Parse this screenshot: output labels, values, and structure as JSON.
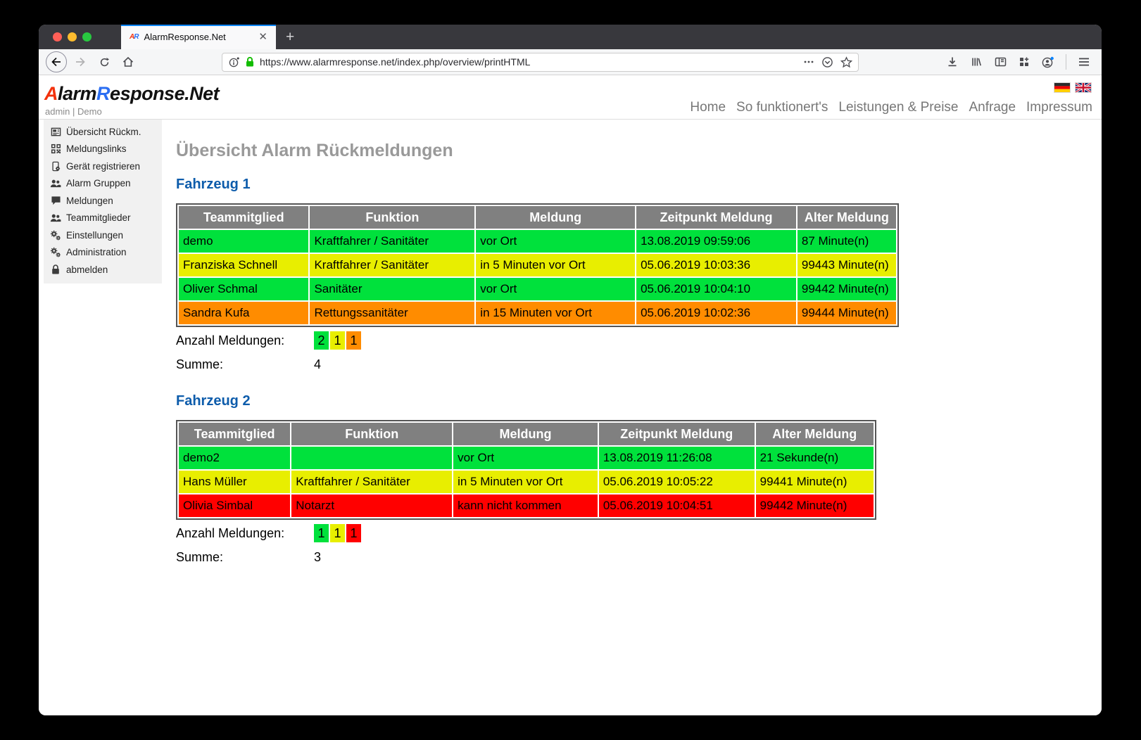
{
  "browser": {
    "tab_title": "AlarmResponse.Net",
    "favicon": {
      "a": "A",
      "r": "R"
    },
    "url": "https://www.alarmresponse.net/index.php/overview/printHTML"
  },
  "header": {
    "logo": {
      "part1": "A",
      "part2": "larm",
      "part3": "R",
      "part4": "esponse.Net"
    },
    "user_info": "admin | Demo",
    "nav": [
      "Home",
      "So funktionert's",
      "Leistungen & Preise",
      "Anfrage",
      "Impressum"
    ],
    "languages": [
      "german-flag",
      "uk-flag"
    ]
  },
  "sidebar": {
    "items": [
      {
        "icon": "overview-icon",
        "label": "Übersicht Rückm."
      },
      {
        "icon": "qr-code-icon",
        "label": "Meldungslinks"
      },
      {
        "icon": "device-register-icon",
        "label": "Gerät registrieren"
      },
      {
        "icon": "users-icon",
        "label": "Alarm Gruppen"
      },
      {
        "icon": "chat-icon",
        "label": "Meldungen"
      },
      {
        "icon": "users-icon",
        "label": "Teammitglieder"
      },
      {
        "icon": "gears-icon",
        "label": "Einstellungen"
      },
      {
        "icon": "gears-icon",
        "label": "Administration"
      },
      {
        "icon": "lock-icon",
        "label": "abmelden"
      }
    ]
  },
  "main": {
    "title": "Übersicht Alarm Rückmeldungen",
    "columns": [
      "Teammitglied",
      "Funktion",
      "Meldung",
      "Zeitpunkt Meldung",
      "Alter Meldung"
    ],
    "anzahl_label": "Anzahl Meldungen:",
    "summe_label": "Summe:",
    "sections": [
      {
        "heading": "Fahrzeug 1",
        "rows": [
          {
            "color": "green",
            "cells": [
              "demo",
              "Kraftfahrer / Sanitäter",
              "vor Ort",
              "13.08.2019 09:59:06",
              "87 Minute(n)"
            ]
          },
          {
            "color": "yellow",
            "cells": [
              "Franziska Schnell",
              "Kraftfahrer / Sanitäter",
              "in 5 Minuten vor Ort",
              "05.06.2019 10:03:36",
              "99443 Minute(n)"
            ]
          },
          {
            "color": "green",
            "cells": [
              "Oliver Schmal",
              "Sanitäter",
              "vor Ort",
              "05.06.2019 10:04:10",
              "99442 Minute(n)"
            ]
          },
          {
            "color": "orange",
            "cells": [
              "Sandra Kufa",
              "Rettungssanitäter",
              "in 15 Minuten vor Ort",
              "05.06.2019 10:02:36",
              "99444 Minute(n)"
            ]
          }
        ],
        "counts": [
          {
            "value": "2",
            "color": "green"
          },
          {
            "value": "1",
            "color": "yellow"
          },
          {
            "value": "1",
            "color": "orange"
          }
        ],
        "summe_value": "4"
      },
      {
        "heading": "Fahrzeug 2",
        "rows": [
          {
            "color": "green",
            "cells": [
              "demo2",
              "",
              "vor Ort",
              "13.08.2019 11:26:08",
              "21 Sekunde(n)"
            ]
          },
          {
            "color": "yellow",
            "cells": [
              "Hans Müller",
              "Kraftfahrer / Sanitäter",
              "in 5 Minuten vor Ort",
              "05.06.2019 10:05:22",
              "99441 Minute(n)"
            ]
          },
          {
            "color": "red",
            "cells": [
              "Olivia Simbal",
              "Notarzt",
              "kann nicht kommen",
              "05.06.2019 10:04:51",
              "99442 Minute(n)"
            ]
          }
        ],
        "counts": [
          {
            "value": "1",
            "color": "green"
          },
          {
            "value": "1",
            "color": "yellow"
          },
          {
            "value": "1",
            "color": "red"
          }
        ],
        "summe_value": "3"
      }
    ]
  },
  "colors": {
    "green": "#00e13c",
    "yellow": "#e8ee00",
    "orange": "#ff8c00",
    "red": "#ff0000",
    "header_gray": "#808080",
    "heading_blue": "#0d5cab",
    "tab_accent": "#0a84ff",
    "lock_green": "#12bc00"
  }
}
